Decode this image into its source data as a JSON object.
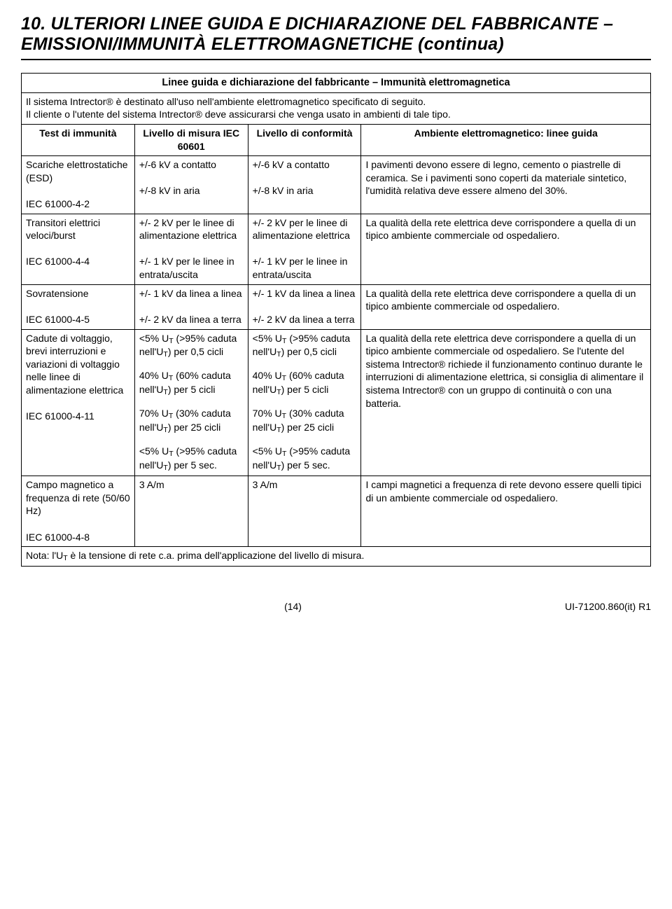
{
  "heading": "10. ULTERIORI LINEE GUIDA E DICHIARAZIONE DEL FABBRICANTE – EMISSIONI/IMMUNITÀ ELETTROMAGNETICHE (continua)",
  "table_title": "Linee guida e dichiarazione del fabbricante – Immunità elettromagnetica",
  "intro": "Il sistema Intrector® è destinato all'uso nell'ambiente elettromagnetico specificato di seguito.\nIl cliente o l'utente del sistema Intrector® deve assicurarsi che venga usato in ambienti di tale tipo.",
  "headers": {
    "c1": "Test di immunità",
    "c2": "Livello di misura IEC 60601",
    "c3": "Livello di conformità",
    "c4": "Ambiente elettromagnetico: linee guida"
  },
  "rows": [
    {
      "c1": "Scariche elettrostatiche (ESD)\n\nIEC 61000-4-2",
      "c2": "+/-6 kV a contatto\n\n+/-8 kV in aria",
      "c3": "+/-6 kV a contatto\n\n+/-8 kV in aria",
      "c4": "I pavimenti devono essere di legno, cemento o piastrelle di ceramica. Se i pavimenti sono coperti da materiale sintetico, l'umidità relativa deve essere almeno del 30%."
    },
    {
      "c1": "Transitori elettrici veloci/burst\n\nIEC 61000-4-4",
      "c2": "+/- 2 kV per le linee di alimentazione elettrica\n\n+/- 1 kV per le linee in entrata/uscita",
      "c3": "+/- 2 kV per le linee di alimentazione elettrica\n\n+/- 1 kV per le linee in entrata/uscita",
      "c4": "La qualità della rete elettrica deve corrispondere a quella di un tipico ambiente commerciale od ospedaliero."
    },
    {
      "c1": "Sovratensione\n\nIEC 61000-4-5",
      "c2": "+/- 1 kV da linea a linea\n\n+/- 2 kV da linea a terra",
      "c3": "+/- 1 kV da linea a linea\n\n+/- 2 kV da linea a terra",
      "c4": "La qualità della rete elettrica deve corrispondere a quella di un tipico ambiente commerciale od ospedaliero."
    }
  ],
  "voltage_row": {
    "c1": "Cadute di voltaggio, brevi interruzioni e variazioni di voltaggio nelle linee di alimentazione elettrica\n\nIEC 61000-4-11",
    "c2_lines": [
      "<5% U|T| (>95% caduta nell'U|T|) per 0,5 cicli",
      "40% U|T| (60% caduta nell'U|T|) per 5 cicli",
      "70% U|T| (30% caduta nell'U|T|) per 25 cicli",
      "<5% U|T| (>95% caduta nell'U|T|) per 5 sec."
    ],
    "c3_lines": [
      "<5% U|T| (>95% caduta nell'U|T|) per 0,5 cicli",
      "40% U|T| (60% caduta nell'U|T|) per 5 cicli",
      "70% U|T| (30% caduta nell'U|T|) per 25 cicli",
      "<5% U|T| (>95% caduta nell'U|T|) per 5 sec."
    ],
    "c4": "La qualità della rete elettrica deve corrispondere a quella di un tipico ambiente commerciale od ospedaliero. Se l'utente del sistema Intrector® richiede il funzionamento continuo durante le interruzioni di alimentazione elettrica, si consiglia di alimentare il sistema Intrector® con un gruppo di continuità o con una batteria."
  },
  "mag_row": {
    "c1": "Campo magnetico a frequenza di rete (50/60 Hz)\n\nIEC 61000-4-8",
    "c2": "3 A/m",
    "c3": "3 A/m",
    "c4": "I campi magnetici a frequenza di rete devono essere quelli tipici di un ambiente commerciale od ospedaliero."
  },
  "note": "Nota: l'U|T| è la tensione di rete c.a. prima dell'applicazione del livello di misura.",
  "footer": {
    "page": "(14)",
    "doc": "UI-71200.860(it) R1"
  }
}
